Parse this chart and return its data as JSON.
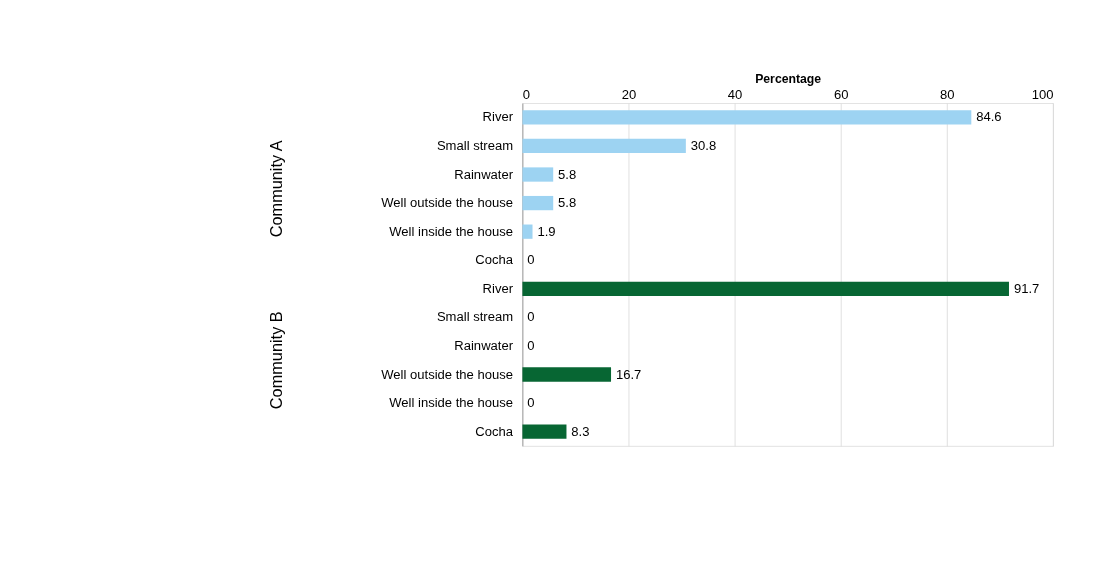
{
  "chart_data": {
    "type": "bar",
    "orientation": "horizontal",
    "xlabel": "Percentage",
    "categories": [
      "River",
      "Small stream",
      "Rainwater",
      "Well outside the house",
      "Well inside the house",
      "Cocha",
      "River",
      "Small stream",
      "Rainwater",
      "Well outside the house",
      "Well inside the house",
      "Cocha"
    ],
    "values": [
      84.6,
      30.8,
      5.8,
      5.8,
      1.9,
      0,
      91.7,
      0,
      0,
      16.7,
      0,
      8.3
    ],
    "colors": [
      "#9dd3f2",
      "#9dd3f2",
      "#9dd3f2",
      "#9dd3f2",
      "#9dd3f2",
      "#9dd3f2",
      "#076633",
      "#076633",
      "#076633",
      "#076633",
      "#076633",
      "#076633"
    ],
    "xlim": [
      0,
      100
    ],
    "xticks": [
      0,
      20,
      40,
      60,
      80,
      100
    ],
    "grid": "x",
    "data_labels": true,
    "annotations": [
      "Community A",
      "Community B"
    ]
  }
}
